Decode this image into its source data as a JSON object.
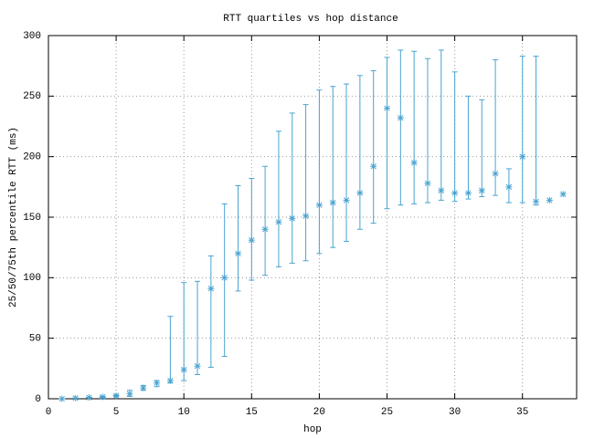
{
  "chart_data": {
    "type": "errorbar",
    "title": "RTT quartiles vs hop distance",
    "x_label": "hop",
    "y_label": "25/50/75th percentile RTT (ms)",
    "xlim": [
      0,
      39
    ],
    "xticks": [
      0,
      5,
      10,
      15,
      20,
      25,
      30,
      35
    ],
    "ylim": [
      0,
      300
    ],
    "yticks": [
      0,
      50,
      100,
      150,
      200,
      250,
      300
    ],
    "grid": true,
    "series": [
      {
        "color": "#4aa3d0",
        "x": [
          1,
          2,
          3,
          4,
          5,
          6,
          7,
          8,
          9,
          10,
          11,
          12,
          13,
          14,
          15,
          16,
          17,
          18,
          19,
          20,
          21,
          22,
          23,
          24,
          25,
          26,
          27,
          28,
          29,
          30,
          31,
          32,
          33,
          34,
          35,
          36,
          37,
          38
        ],
        "values": [
          0,
          0.5,
          1,
          1.5,
          2.5,
          4,
          9,
          13,
          15,
          24,
          27,
          91,
          100,
          120,
          131,
          140,
          146,
          149,
          151,
          160,
          162,
          164,
          170,
          192,
          240,
          232,
          195,
          178,
          172,
          170,
          170,
          172,
          186,
          175,
          200,
          163,
          164,
          169
        ],
        "low": [
          0,
          0.5,
          1,
          1,
          2,
          2,
          7,
          10,
          13,
          15,
          20,
          26,
          35,
          89,
          98,
          102,
          109,
          112,
          114,
          120,
          125,
          130,
          140,
          145,
          157,
          160,
          161,
          162,
          164,
          163,
          165,
          167,
          168,
          162,
          162,
          160,
          null,
          null
        ],
        "high": [
          0,
          0.5,
          1,
          2,
          3,
          7,
          11,
          15,
          68,
          96,
          97,
          118,
          161,
          176,
          182,
          192,
          221,
          236,
          243,
          255,
          258,
          260,
          267,
          271,
          282,
          288,
          287,
          281,
          288,
          270,
          250,
          247,
          280,
          190,
          283,
          283,
          null,
          null
        ]
      }
    ]
  }
}
